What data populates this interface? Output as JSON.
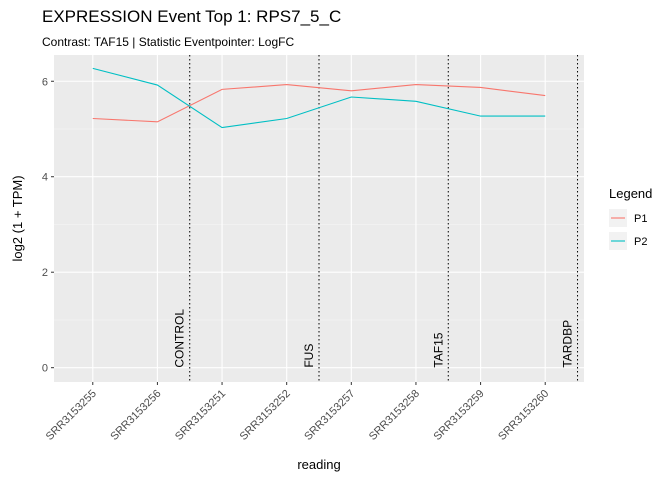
{
  "chart_data": {
    "type": "line",
    "title": "EXPRESSION Event Top 1: RPS7_5_C",
    "subtitle": "Contrast: TAF15 | Statistic Eventpointer: LogFC",
    "xlabel": "reading",
    "ylabel": "log2 (1 + TPM)",
    "categories": [
      "SRR3153255",
      "SRR3153256",
      "SRR3153251",
      "SRR3153252",
      "SRR3153257",
      "SRR3153258",
      "SRR3153259",
      "SRR3153260"
    ],
    "ylim": [
      -0.3,
      6.55
    ],
    "yticks": [
      0,
      2,
      4,
      6
    ],
    "grid": true,
    "series": [
      {
        "name": "P1",
        "color": "#F8766D",
        "values": [
          5.22,
          5.15,
          5.83,
          5.93,
          5.8,
          5.93,
          5.87,
          5.7
        ]
      },
      {
        "name": "P2",
        "color": "#00BFC4",
        "values": [
          6.27,
          5.92,
          5.03,
          5.22,
          5.67,
          5.58,
          5.27,
          5.27
        ]
      }
    ],
    "vlines": [
      {
        "label": "CONTROL",
        "x": 2.5
      },
      {
        "label": "FUS",
        "x": 4.5
      },
      {
        "label": "TAF15",
        "x": 6.5
      },
      {
        "label": "TARDBP",
        "x": 8.5
      }
    ],
    "legend": {
      "title": "Legend",
      "position": "right"
    }
  }
}
